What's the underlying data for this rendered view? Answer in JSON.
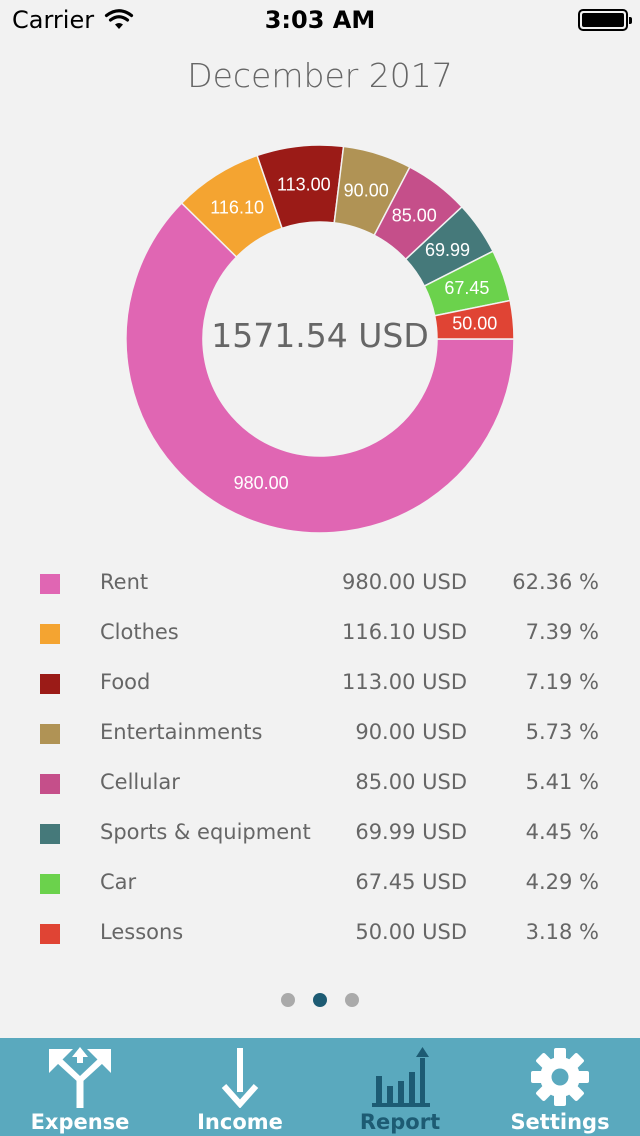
{
  "status_bar": {
    "carrier": "Carrier",
    "time": "3:03 AM"
  },
  "month_title": "December 2017",
  "total": "1571.54 USD",
  "chart_data": {
    "type": "pie",
    "donut": true,
    "categories": [
      "Rent",
      "Clothes",
      "Food",
      "Entertainments",
      "Cellular",
      "Sports & equipment",
      "Car",
      "Lessons"
    ],
    "values": [
      980.0,
      116.1,
      113.0,
      90.0,
      85.0,
      69.99,
      67.45,
      50.0
    ],
    "value_labels": [
      "980.00",
      "116.10",
      "113.00",
      "90.00",
      "85.00",
      "69.99",
      "67.45",
      "50.00"
    ],
    "colors": [
      "#e066b3",
      "#f4a431",
      "#9b1b17",
      "#b09355",
      "#c54f8a",
      "#45797a",
      "#6bd24c",
      "#e04434"
    ]
  },
  "legend": [
    {
      "name": "Rent",
      "amount": "980.00 USD",
      "percent": "62.36 %",
      "color": "#e066b3"
    },
    {
      "name": "Clothes",
      "amount": "116.10 USD",
      "percent": "7.39 %",
      "color": "#f4a431"
    },
    {
      "name": "Food",
      "amount": "113.00 USD",
      "percent": "7.19 %",
      "color": "#9b1b17"
    },
    {
      "name": "Entertainments",
      "amount": "90.00 USD",
      "percent": "5.73 %",
      "color": "#b09355"
    },
    {
      "name": "Cellular",
      "amount": "85.00 USD",
      "percent": "5.41 %",
      "color": "#c54f8a"
    },
    {
      "name": "Sports & equipment",
      "amount": "69.99 USD",
      "percent": "4.45 %",
      "color": "#45797a"
    },
    {
      "name": "Car",
      "amount": "67.45 USD",
      "percent": "4.29 %",
      "color": "#6bd24c"
    },
    {
      "name": "Lessons",
      "amount": "50.00 USD",
      "percent": "3.18 %",
      "color": "#e04434"
    }
  ],
  "pager": {
    "count": 3,
    "active_index": 1
  },
  "tab_bar": {
    "tabs": [
      {
        "label": "Expense",
        "icon": "split-arrows-icon"
      },
      {
        "label": "Income",
        "icon": "down-arrow-icon"
      },
      {
        "label": "Report",
        "icon": "bar-chart-icon"
      },
      {
        "label": "Settings",
        "icon": "gear-icon"
      }
    ],
    "selected_index": 2,
    "background": "#5aa9be",
    "selected_color": "#1d5b73"
  }
}
